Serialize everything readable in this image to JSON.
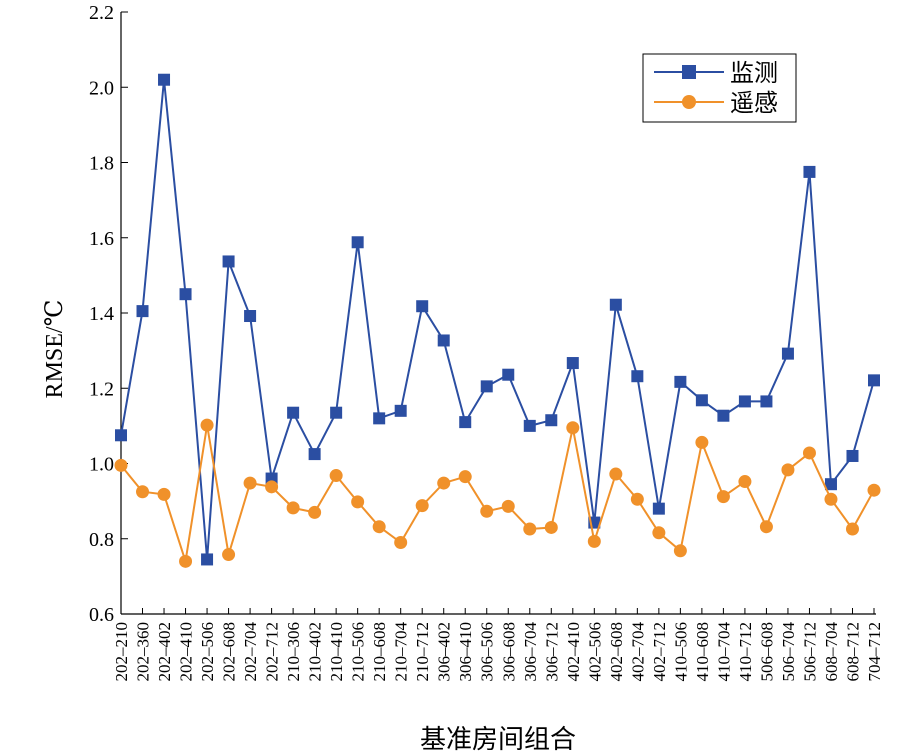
{
  "chart_data": {
    "type": "line",
    "xlabel": "基准房间组合",
    "ylabel": "RMSE/℃",
    "ylim": [
      0.6,
      2.2
    ],
    "yticks": [
      "0.6",
      "0.8",
      "1.0",
      "1.2",
      "1.4",
      "1.6",
      "1.8",
      "2.0",
      "2.2"
    ],
    "legend_position": "top-right",
    "grid": false,
    "categories": [
      "202–210",
      "202–360",
      "202–402",
      "202–410",
      "202–506",
      "202–608",
      "202–704",
      "202–712",
      "210–306",
      "210–402",
      "210–410",
      "210–506",
      "210–608",
      "210–704",
      "210–712",
      "306–402",
      "306–410",
      "306–506",
      "306–608",
      "306–704",
      "306–712",
      "402–410",
      "402–506",
      "402–608",
      "402–704",
      "402–712",
      "410–506",
      "410–608",
      "410–704",
      "410–712",
      "506–608",
      "506–704",
      "506–712",
      "608–704",
      "608–712",
      "704–712"
    ],
    "series": [
      {
        "name": "监测",
        "color": "#2b4ea2",
        "marker": "square",
        "values": [
          1.075,
          1.405,
          2.02,
          1.45,
          0.745,
          1.537,
          1.392,
          0.96,
          1.135,
          1.025,
          1.135,
          1.588,
          1.12,
          1.14,
          1.418,
          1.327,
          1.11,
          1.205,
          1.236,
          1.1,
          1.115,
          1.267,
          0.843,
          1.422,
          1.232,
          0.88,
          1.217,
          1.168,
          1.127,
          1.165,
          1.165,
          1.292,
          1.775,
          0.945,
          1.02,
          1.221
        ]
      },
      {
        "name": "遥感",
        "color": "#f0912a",
        "marker": "circle",
        "values": [
          0.995,
          0.925,
          0.918,
          0.74,
          1.102,
          0.758,
          0.948,
          0.938,
          0.882,
          0.87,
          0.968,
          0.898,
          0.832,
          0.79,
          0.888,
          0.948,
          0.965,
          0.873,
          0.886,
          0.826,
          0.83,
          1.095,
          0.793,
          0.972,
          0.905,
          0.816,
          0.768,
          1.056,
          0.912,
          0.952,
          0.832,
          0.983,
          1.028,
          0.905,
          0.826,
          0.929
        ]
      }
    ]
  }
}
